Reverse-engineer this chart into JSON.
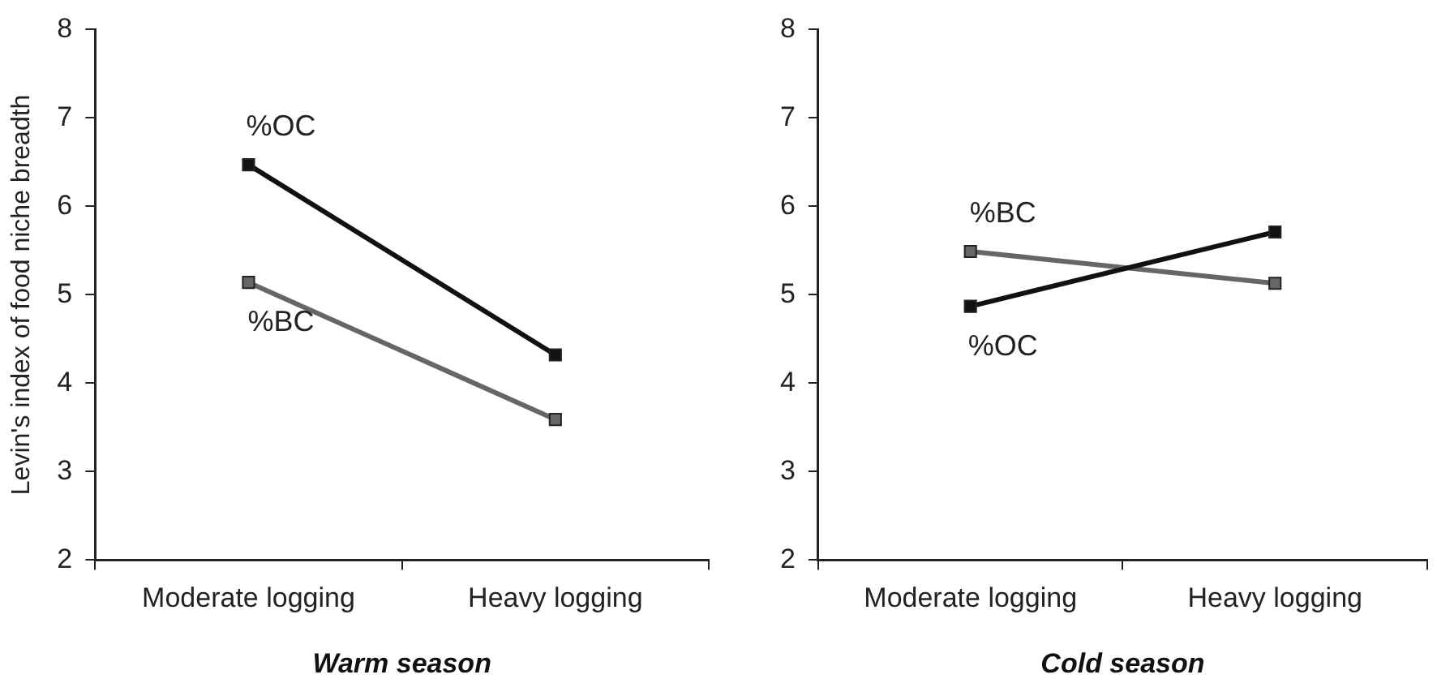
{
  "chart_data": [
    {
      "type": "line",
      "xlabel": "Warm season",
      "ylabel": "Levin's index of food niche breadth",
      "categories": [
        "Moderate logging",
        "Heavy logging"
      ],
      "ylim": [
        2,
        8
      ],
      "yticks": [
        2,
        3,
        4,
        5,
        6,
        7,
        8
      ],
      "grid": false,
      "legend": false,
      "marker": "square",
      "line_style": "solid",
      "series": [
        {
          "name": "%OC",
          "color": "#111111",
          "values": [
            6.47,
            4.32
          ]
        },
        {
          "name": "%BC",
          "color": "#666666",
          "values": [
            5.14,
            3.59
          ]
        }
      ]
    },
    {
      "type": "line",
      "xlabel": "Cold season",
      "categories": [
        "Moderate logging",
        "Heavy logging"
      ],
      "ylim": [
        2,
        8
      ],
      "yticks": [
        2,
        3,
        4,
        5,
        6,
        7,
        8
      ],
      "grid": false,
      "legend": false,
      "marker": "square",
      "line_style": "solid",
      "series": [
        {
          "name": "%OC",
          "color": "#111111",
          "values": [
            4.87,
            5.71
          ]
        },
        {
          "name": "%BC",
          "color": "#666666",
          "values": [
            5.49,
            5.13
          ]
        }
      ]
    }
  ]
}
